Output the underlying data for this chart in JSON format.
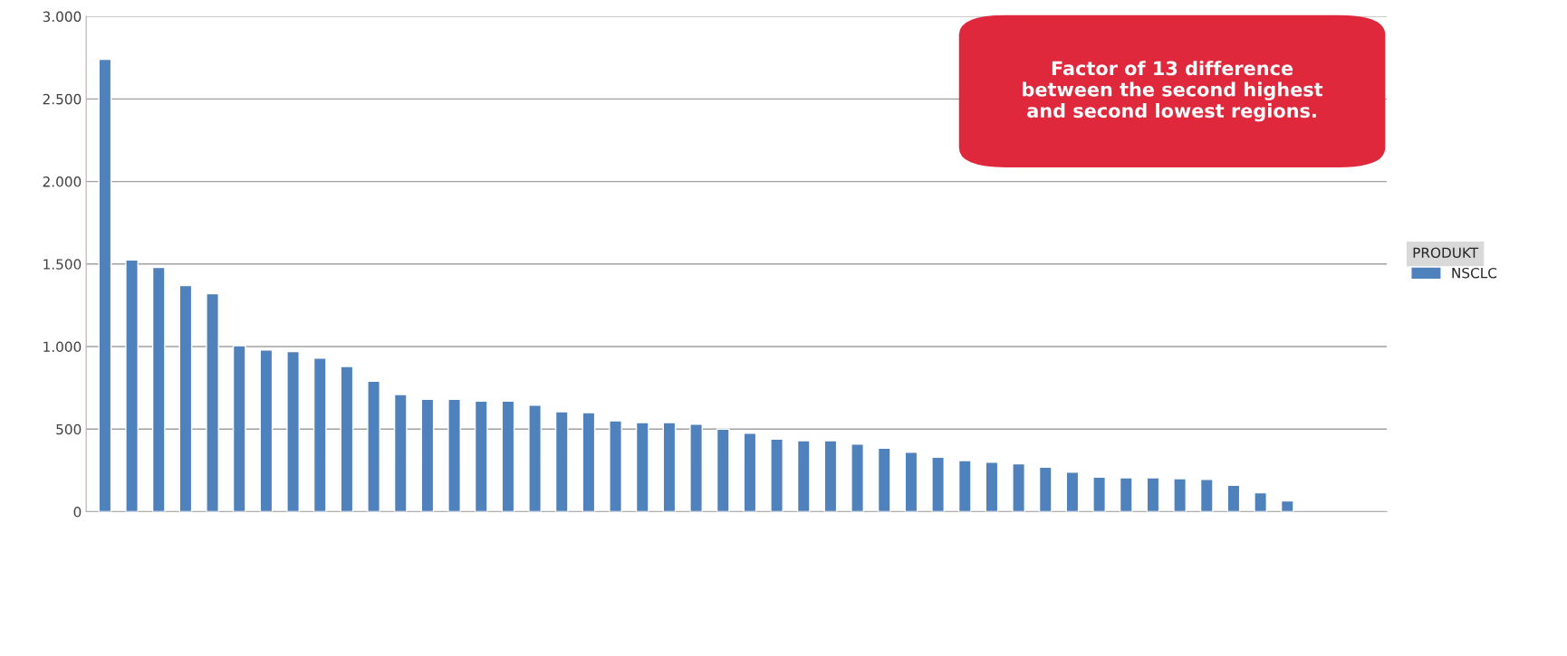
{
  "chart_data": {
    "type": "bar",
    "categories": [
      null,
      null,
      null,
      null,
      null,
      null,
      null,
      null,
      null,
      null,
      null,
      null,
      null,
      null,
      null,
      null,
      null,
      null,
      null,
      null,
      null,
      null,
      null,
      null,
      null,
      null,
      null,
      null,
      null,
      null,
      null,
      null,
      null,
      null,
      null,
      null,
      null,
      null,
      null,
      null,
      null,
      null,
      null,
      null,
      null,
      null,
      null,
      null
    ],
    "series": [
      {
        "name": "NSCLC",
        "color": "#4f81bd",
        "values": [
          2740,
          1525,
          1480,
          1370,
          1320,
          1005,
          980,
          970,
          930,
          880,
          790,
          710,
          680,
          680,
          670,
          670,
          645,
          605,
          600,
          550,
          540,
          540,
          530,
          500,
          475,
          440,
          430,
          430,
          410,
          385,
          360,
          330,
          310,
          300,
          290,
          270,
          240,
          210,
          205,
          205,
          200,
          195,
          160,
          115,
          65,
          null,
          null,
          null
        ]
      }
    ],
    "legend_title": "PRODUKT",
    "annotations": [
      "Factor of 13 difference between the second highest and second lowest regions."
    ],
    "ylim": [
      0,
      3000
    ],
    "yticks": [
      0,
      500,
      {
        "value": 1000,
        "label": "1.000"
      },
      {
        "value": 1500,
        "label": "1.500"
      },
      {
        "value": 2000,
        "label": "2.000"
      },
      {
        "value": 2500,
        "label": "2.500"
      },
      {
        "value": 3000,
        "label": "3.000"
      }
    ],
    "grid": "y",
    "legend": "right"
  }
}
